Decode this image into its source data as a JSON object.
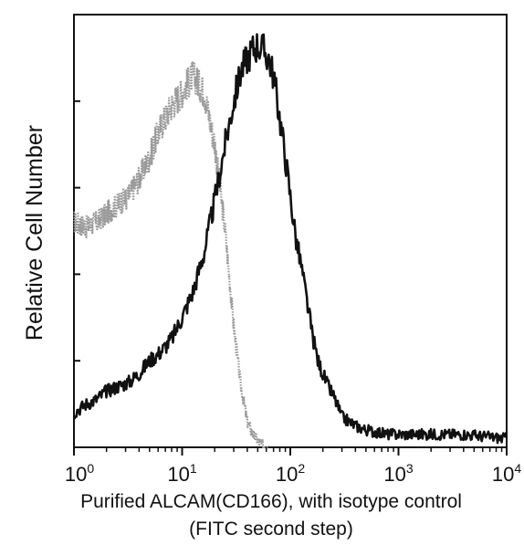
{
  "chart_data": {
    "type": "line",
    "title": "",
    "xlabel": "Purified ALCAM(CD166), with isotype control",
    "xlabel_line2": "(FITC second step)",
    "ylabel": "Relative Cell Number",
    "x_scale": "log",
    "xlim": [
      1,
      10000
    ],
    "ylim": [
      0,
      100
    ],
    "y_tick_values": [
      0,
      20,
      40,
      60,
      80,
      100
    ],
    "y_tick_labels_shown": false,
    "grid": false,
    "x_ticks": [
      {
        "base": "10",
        "exp": "0",
        "value": 1
      },
      {
        "base": "10",
        "exp": "1",
        "value": 10
      },
      {
        "base": "10",
        "exp": "2",
        "value": 100
      },
      {
        "base": "10",
        "exp": "3",
        "value": 1000
      },
      {
        "base": "10",
        "exp": "4",
        "value": 10000
      }
    ],
    "series": [
      {
        "color": "#111111",
        "style": "solid",
        "x": [
          1,
          1.3,
          1.6,
          2,
          2.5,
          3.2,
          4,
          5,
          6.3,
          8,
          10,
          12.6,
          16,
          20,
          25,
          30,
          35,
          40,
          45,
          50,
          56,
          63,
          70,
          80,
          90,
          100,
          113,
          126,
          142,
          160,
          180,
          200,
          224,
          250,
          300,
          400,
          500,
          630,
          800,
          1000,
          2000,
          4000,
          10000
        ],
        "values": [
          8,
          10,
          11,
          13,
          14,
          15,
          17,
          20,
          22,
          25,
          30,
          36,
          45,
          57,
          70,
          80,
          87,
          90,
          92,
          93,
          92,
          90,
          86,
          76,
          67,
          58,
          48,
          42,
          34,
          26,
          20,
          17,
          14,
          12,
          7,
          5,
          4,
          3.5,
          3,
          3,
          3,
          3,
          2
        ]
      },
      {
        "color": "#9a9a9a",
        "style": "dotted",
        "x": [
          1,
          1.3,
          1.6,
          2,
          2.5,
          3.2,
          4,
          5,
          6.3,
          8,
          10,
          12.6,
          16,
          20,
          25,
          30,
          35,
          40,
          45,
          50,
          56,
          63
        ],
        "values": [
          52,
          51,
          52,
          54,
          56,
          58,
          62,
          67,
          74,
          79,
          82,
          86,
          82,
          70,
          50,
          28,
          14,
          6,
          3,
          1.5,
          0.5,
          0
        ]
      }
    ]
  }
}
